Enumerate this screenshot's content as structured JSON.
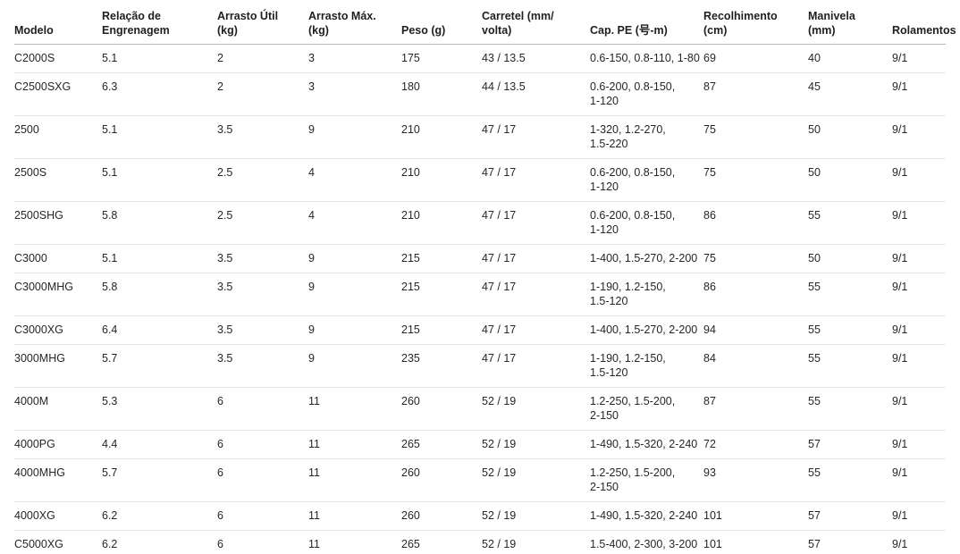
{
  "table": {
    "columns": [
      {
        "key": "modelo",
        "label": "Modelo"
      },
      {
        "key": "relacao",
        "label": "Relação de\nEngrenagem"
      },
      {
        "key": "arrasto_util",
        "label": "Arrasto Útil\n(kg)"
      },
      {
        "key": "arrasto_max",
        "label": "Arrasto Máx.\n(kg)"
      },
      {
        "key": "peso",
        "label": "Peso (g)"
      },
      {
        "key": "carretel",
        "label": "Carretel (mm/\nvolta)"
      },
      {
        "key": "cap_pe",
        "label": "Cap. PE (号-m)"
      },
      {
        "key": "recolhimento",
        "label": "Recolhimento\n(cm)"
      },
      {
        "key": "manivela",
        "label": "Manivela\n(mm)"
      },
      {
        "key": "rolamentos",
        "label": "Rolamentos"
      }
    ],
    "rows": [
      {
        "modelo": "C2000S",
        "relacao": "5.1",
        "arrasto_util": "2",
        "arrasto_max": "3",
        "peso": "175",
        "carretel": "43 / 13.5",
        "cap_pe": "0.6-150, 0.8-110, 1-80",
        "recolhimento": "69",
        "manivela": "40",
        "rolamentos": "9/1"
      },
      {
        "modelo": "C2500SXG",
        "relacao": "6.3",
        "arrasto_util": "2",
        "arrasto_max": "3",
        "peso": "180",
        "carretel": "44 / 13.5",
        "cap_pe": "0.6-200, 0.8-150,\n1-120",
        "recolhimento": "87",
        "manivela": "45",
        "rolamentos": "9/1"
      },
      {
        "modelo": "2500",
        "relacao": "5.1",
        "arrasto_util": "3.5",
        "arrasto_max": "9",
        "peso": "210",
        "carretel": "47 / 17",
        "cap_pe": "1-320, 1.2-270,\n1.5-220",
        "recolhimento": "75",
        "manivela": "50",
        "rolamentos": "9/1"
      },
      {
        "modelo": "2500S",
        "relacao": "5.1",
        "arrasto_util": "2.5",
        "arrasto_max": "4",
        "peso": "210",
        "carretel": "47 / 17",
        "cap_pe": "0.6-200, 0.8-150,\n1-120",
        "recolhimento": "75",
        "manivela": "50",
        "rolamentos": "9/1"
      },
      {
        "modelo": "2500SHG",
        "relacao": "5.8",
        "arrasto_util": "2.5",
        "arrasto_max": "4",
        "peso": "210",
        "carretel": "47 / 17",
        "cap_pe": "0.6-200, 0.8-150,\n1-120",
        "recolhimento": "86",
        "manivela": "55",
        "rolamentos": "9/1"
      },
      {
        "modelo": "C3000",
        "relacao": "5.1",
        "arrasto_util": "3.5",
        "arrasto_max": "9",
        "peso": "215",
        "carretel": "47 / 17",
        "cap_pe": "1-400, 1.5-270, 2-200",
        "recolhimento": "75",
        "manivela": "50",
        "rolamentos": "9/1"
      },
      {
        "modelo": "C3000MHG",
        "relacao": "5.8",
        "arrasto_util": "3.5",
        "arrasto_max": "9",
        "peso": "215",
        "carretel": "47 / 17",
        "cap_pe": "1-190, 1.2-150,\n1.5-120",
        "recolhimento": "86",
        "manivela": "55",
        "rolamentos": "9/1"
      },
      {
        "modelo": "C3000XG",
        "relacao": "6.4",
        "arrasto_util": "3.5",
        "arrasto_max": "9",
        "peso": "215",
        "carretel": "47 / 17",
        "cap_pe": "1-400, 1.5-270, 2-200",
        "recolhimento": "94",
        "manivela": "55",
        "rolamentos": "9/1"
      },
      {
        "modelo": "3000MHG",
        "relacao": "5.7",
        "arrasto_util": "3.5",
        "arrasto_max": "9",
        "peso": "235",
        "carretel": "47 / 17",
        "cap_pe": "1-190, 1.2-150,\n1.5-120",
        "recolhimento": "84",
        "manivela": "55",
        "rolamentos": "9/1"
      },
      {
        "modelo": "4000M",
        "relacao": "5.3",
        "arrasto_util": "6",
        "arrasto_max": "11",
        "peso": "260",
        "carretel": "52 / 19",
        "cap_pe": "1.2-250, 1.5-200,\n2-150",
        "recolhimento": "87",
        "manivela": "55",
        "rolamentos": "9/1"
      },
      {
        "modelo": "4000PG",
        "relacao": "4.4",
        "arrasto_util": "6",
        "arrasto_max": "11",
        "peso": "265",
        "carretel": "52 / 19",
        "cap_pe": "1-490, 1.5-320, 2-240",
        "recolhimento": "72",
        "manivela": "57",
        "rolamentos": "9/1"
      },
      {
        "modelo": "4000MHG",
        "relacao": "5.7",
        "arrasto_util": "6",
        "arrasto_max": "11",
        "peso": "260",
        "carretel": "52 / 19",
        "cap_pe": "1.2-250, 1.5-200,\n2-150",
        "recolhimento": "93",
        "manivela": "55",
        "rolamentos": "9/1"
      },
      {
        "modelo": "4000XG",
        "relacao": "6.2",
        "arrasto_util": "6",
        "arrasto_max": "11",
        "peso": "260",
        "carretel": "52 / 19",
        "cap_pe": "1-490, 1.5-320, 2-240",
        "recolhimento": "101",
        "manivela": "57",
        "rolamentos": "9/1"
      },
      {
        "modelo": "C5000XG",
        "relacao": "6.2",
        "arrasto_util": "6",
        "arrasto_max": "11",
        "peso": "265",
        "carretel": "52 / 19",
        "cap_pe": "1.5-400, 2-300, 3-200",
        "recolhimento": "101",
        "manivela": "57",
        "rolamentos": "9/1"
      }
    ]
  },
  "colors": {
    "background": "#ffffff",
    "text": "#262626",
    "header_text": "#1f1f1f",
    "header_border": "#b8b8b8",
    "row_border": "#e6e6e6"
  }
}
